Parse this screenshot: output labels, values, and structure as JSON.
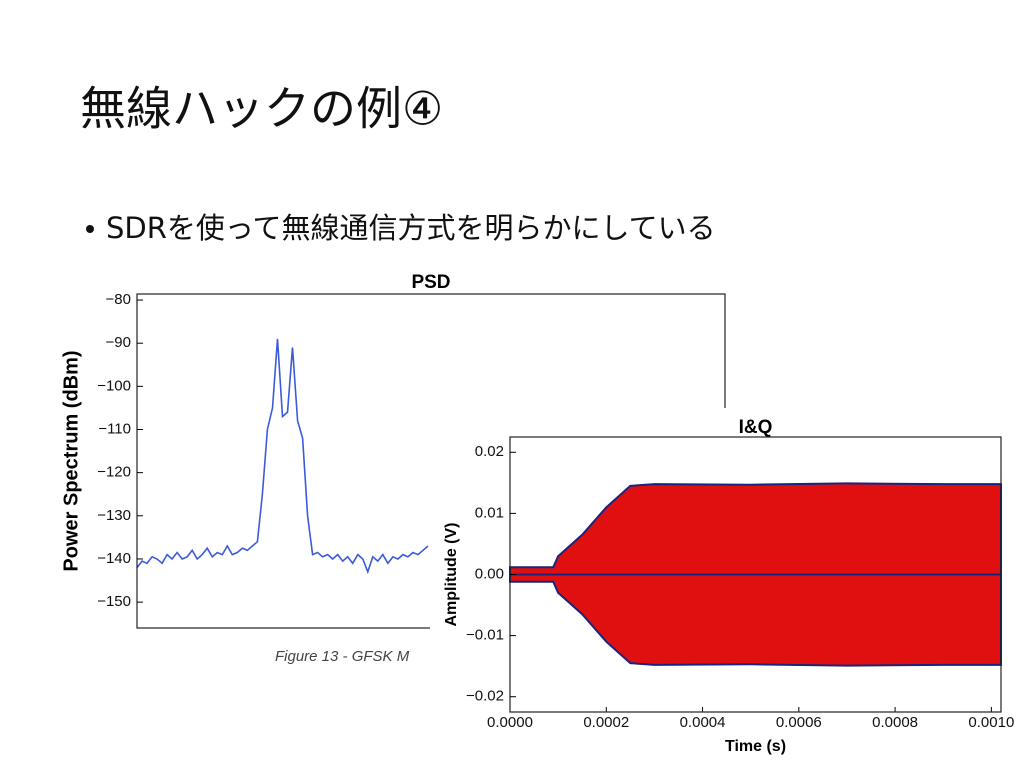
{
  "title": "無線ハックの例④",
  "bullet": "SDRを使って無線通信方式を明らかにしている",
  "chart_data": [
    {
      "type": "line",
      "title": "PSD",
      "ylabel": "Power Spectrum (dBm)",
      "caption": "Figure 13 - GFSK M",
      "color": "#3b5bdb",
      "ylim": [
        -156,
        -78.6
      ],
      "yticks": [
        {
          "value": -80,
          "label": "−80"
        },
        {
          "value": -90,
          "label": "−90"
        },
        {
          "value": -100,
          "label": "−100"
        },
        {
          "value": -110,
          "label": "−110"
        },
        {
          "value": -120,
          "label": "−120"
        },
        {
          "value": -130,
          "label": "−130"
        },
        {
          "value": -140,
          "label": "−140"
        },
        {
          "value": -150,
          "label": "−150"
        }
      ],
      "values": [
        -142,
        -140.5,
        -141,
        -139.5,
        -140,
        -141,
        -139,
        -140,
        -138.5,
        -140,
        -139.5,
        -138,
        -140,
        -139,
        -137.5,
        -139.5,
        -138.5,
        -139,
        -137,
        -139,
        -138.5,
        -137.5,
        -138,
        -137,
        -136,
        -125,
        -110,
        -105,
        -89,
        -107,
        -106,
        -91,
        -108,
        -112,
        -130,
        -139,
        -138.5,
        -139.5,
        -139,
        -140,
        -139,
        -140.5,
        -139.5,
        -141,
        -139,
        -140,
        -143,
        -139.5,
        -140.5,
        -139,
        -141,
        -139.5,
        -140,
        -139,
        -139.5,
        -138.5,
        -139,
        -138,
        -137
      ]
    },
    {
      "type": "area",
      "title": "I&Q",
      "xlabel": "Time (s)",
      "ylabel": "Amplitude (V)",
      "xlim": [
        0,
        0.00102
      ],
      "ylim": [
        -0.0225,
        0.0225
      ],
      "xticks": [
        {
          "value": 0,
          "label": "0.0000"
        },
        {
          "value": 0.0002,
          "label": "0.0002"
        },
        {
          "value": 0.0004,
          "label": "0.0004"
        },
        {
          "value": 0.0006,
          "label": "0.0006"
        },
        {
          "value": 0.0008,
          "label": "0.0008"
        },
        {
          "value": 0.001,
          "label": "0.0010"
        }
      ],
      "yticks": [
        {
          "value": 0.02,
          "label": "0.02"
        },
        {
          "value": 0.01,
          "label": "0.01"
        },
        {
          "value": 0,
          "label": "0.00"
        },
        {
          "value": -0.01,
          "label": "−0.01"
        },
        {
          "value": -0.02,
          "label": "−0.02"
        }
      ],
      "x": [
        0,
        9e-05,
        0.0001,
        0.00015,
        0.0002,
        0.00025,
        0.0003,
        0.0005,
        0.0007,
        0.0009,
        0.001,
        0.00102
      ],
      "series": [
        {
          "color": "#e01010",
          "values": [
            0.0012,
            0.0012,
            0.003,
            0.0065,
            0.011,
            0.0145,
            0.0148,
            0.0147,
            0.0149,
            0.0148,
            0.0148,
            0.0148
          ]
        },
        {
          "color": "#e01010",
          "values": [
            -0.0012,
            -0.0012,
            -0.003,
            -0.0065,
            -0.011,
            -0.0145,
            -0.0148,
            -0.0147,
            -0.0149,
            -0.0148,
            -0.0148,
            -0.0148
          ]
        }
      ]
    }
  ]
}
